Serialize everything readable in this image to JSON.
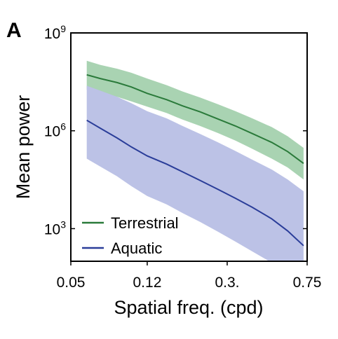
{
  "panel_label": "A",
  "chart_data": {
    "type": "line",
    "xlabel": "Spatial freq. (cpd)",
    "ylabel": "Mean power",
    "x_scale": "log",
    "y_scale": "log",
    "xlim": [
      0.05,
      0.75
    ],
    "ylim": [
      100,
      1000000000
    ],
    "x_ticks": [
      {
        "value": 0.05,
        "label": "0.05"
      },
      {
        "value": 0.12,
        "label": "0.12"
      },
      {
        "value": 0.3,
        "label": "0.3."
      },
      {
        "value": 0.75,
        "label": "0.75"
      }
    ],
    "y_ticks": [
      {
        "value": 1000,
        "base": "10",
        "exp": "3"
      },
      {
        "value": 1000000,
        "base": "10",
        "exp": "6"
      },
      {
        "value": 1000000000,
        "base": "10",
        "exp": "9"
      }
    ],
    "legend": {
      "position": "bottom-left"
    },
    "series": [
      {
        "name": "Terrestrial",
        "color": "#2a7a3a",
        "band_color": "#a9d3b2",
        "x": [
          0.06,
          0.07,
          0.085,
          0.1,
          0.12,
          0.15,
          0.18,
          0.22,
          0.27,
          0.33,
          0.4,
          0.5,
          0.6,
          0.72
        ],
        "y": [
          52000000,
          40000000,
          30000000,
          22000000,
          14000000,
          9000000,
          5800000,
          3800000,
          2300000,
          1400000,
          820000,
          440000,
          230000,
          100000
        ],
        "lower": [
          18000000,
          14000000,
          11000000,
          8000000,
          5500000,
          3500000,
          2200000,
          1400000,
          850000,
          500000,
          280000,
          140000,
          75000,
          32000
        ],
        "upper": [
          140000000,
          105000000,
          80000000,
          60000000,
          40000000,
          25000000,
          16000000,
          10500000,
          6500000,
          4000000,
          2400000,
          1300000,
          680000,
          300000
        ]
      },
      {
        "name": "Aquatic",
        "color": "#2a3d99",
        "band_color": "#bcc2e6",
        "x": [
          0.06,
          0.07,
          0.085,
          0.1,
          0.12,
          0.15,
          0.18,
          0.22,
          0.27,
          0.33,
          0.4,
          0.5,
          0.6,
          0.72
        ],
        "y": [
          2100000,
          1200000,
          600000,
          320000,
          170000,
          95000,
          55000,
          30000,
          16000,
          8500,
          4500,
          2000,
          850,
          300
        ],
        "lower": [
          140000,
          80000,
          40000,
          20000,
          10000,
          5500,
          3000,
          1600,
          800,
          400,
          200,
          90,
          40,
          15
        ],
        "upper": [
          24000000,
          17000000,
          11000000,
          7000000,
          4000000,
          2400000,
          1400000,
          800000,
          440000,
          240000,
          130000,
          65000,
          32000,
          14000
        ]
      }
    ]
  }
}
